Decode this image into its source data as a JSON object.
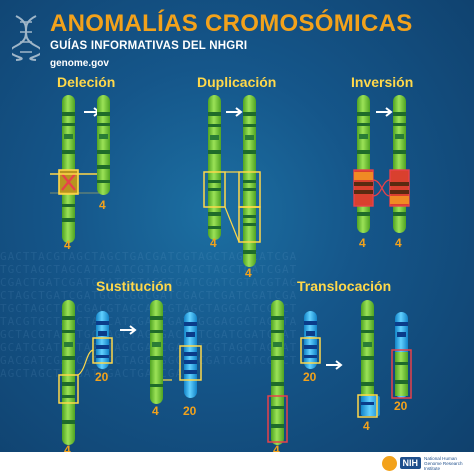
{
  "header": {
    "title": "ANOMALÍAS CROMOSÓMICAS",
    "subtitle": "GUÍAS INFORMATIVAS DEL NHGRI",
    "website": "genome.gov"
  },
  "panels": {
    "delecion": {
      "title": "Deleción",
      "labels": [
        "4",
        "4"
      ]
    },
    "duplicacion": {
      "title": "Duplicación",
      "labels": [
        "4",
        "4"
      ]
    },
    "inversion": {
      "title": "Inversión",
      "labels": [
        "4",
        "4"
      ]
    },
    "sustitucion": {
      "title": "Sustitución",
      "labels": [
        "4",
        "20",
        "4",
        "20"
      ]
    },
    "translocacion": {
      "title": "Translocación",
      "labels": [
        "20",
        "4",
        "20",
        "4"
      ]
    }
  },
  "footer": {
    "logo_badge": "NIH",
    "logo_text": "National Human Genome Research Institute"
  },
  "colors": {
    "chromosome_green": "#7fd23a",
    "chromosome_band": "#1f6b2a",
    "chromosome_blue": "#27a6e8",
    "highlight_yellow": "#ffd84a",
    "highlight_red": "#e8414a",
    "number_orange": "#f3a21b",
    "title_orange": "#f3a21b"
  },
  "background_sequence": "GACTTACGTAGCTAGCTGACGATCGTAGCTAGGCATCGATGCTAGCTAGCATGCATCGTAGCTAGCTAGCTGATCGATCGACTGATCGATGCATGCTAGCTGATCGATCGTACGTAGCTAGCTGATCGATGCGCGGCGATCGACTCGATCGATCGATGCTAGCTAGCGACGTAGCATCGTAGCTAGGCATCGACTTACGTGCTAGCTAGCATCGATCGATCGCGACGCTAGCTAGCTACGTACGTGCTAGCTAGCGACCATCGATCGATCGATGCATCGATGCTAGCTAGCGATCGACATCGTAGCTAGCATGACGATCGATCGTAGCTAGCAGGCATCGATCGATCGGCTAGCTAGCTACGATCGACTGATCGA"
}
